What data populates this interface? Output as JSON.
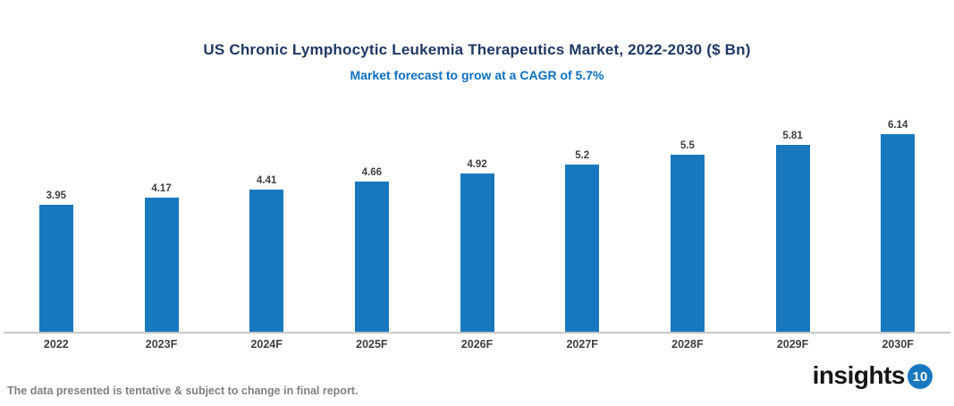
{
  "chart": {
    "title": "US Chronic Lymphocytic Leukemia Therapeutics Market, 2022-2030 ($ Bn)",
    "subtitle": "Market forecast to grow at a CAGR of 5.7%"
  },
  "chart_data": {
    "type": "bar",
    "categories": [
      "2022",
      "2023F",
      "2024F",
      "2025F",
      "2026F",
      "2027F",
      "2028F",
      "2029F",
      "2030F"
    ],
    "values": [
      3.95,
      4.17,
      4.41,
      4.66,
      4.92,
      5.2,
      5.5,
      5.81,
      6.14
    ],
    "value_labels": [
      "3.95",
      "4.17",
      "4.41",
      "4.66",
      "4.92",
      "5.2",
      "5.5",
      "5.81",
      "6.14"
    ],
    "title": "US Chronic Lymphocytic Leukemia Therapeutics Market, 2022-2030 ($ Bn)",
    "subtitle": "Market forecast to grow at a CAGR of 5.7%",
    "xlabel": "",
    "ylabel": "",
    "unit": "$ Bn",
    "cagr": "5.7%",
    "ylim": [
      0,
      7
    ],
    "grid": false,
    "legend": false,
    "bar_color": "#1878BE"
  },
  "footer": {
    "disclaimer": "The data presented is tentative & subject to change in final report.",
    "logo": {
      "text": "insights",
      "badge": "10",
      "badge_color": "#1878BE"
    }
  },
  "colors": {
    "title": "#1F3864",
    "subtitle": "#0A6FC2",
    "bar": "#1878BE",
    "labels": "#3F3F3F",
    "axis_line": "#C8C8C8",
    "disclaimer": "#808080"
  }
}
